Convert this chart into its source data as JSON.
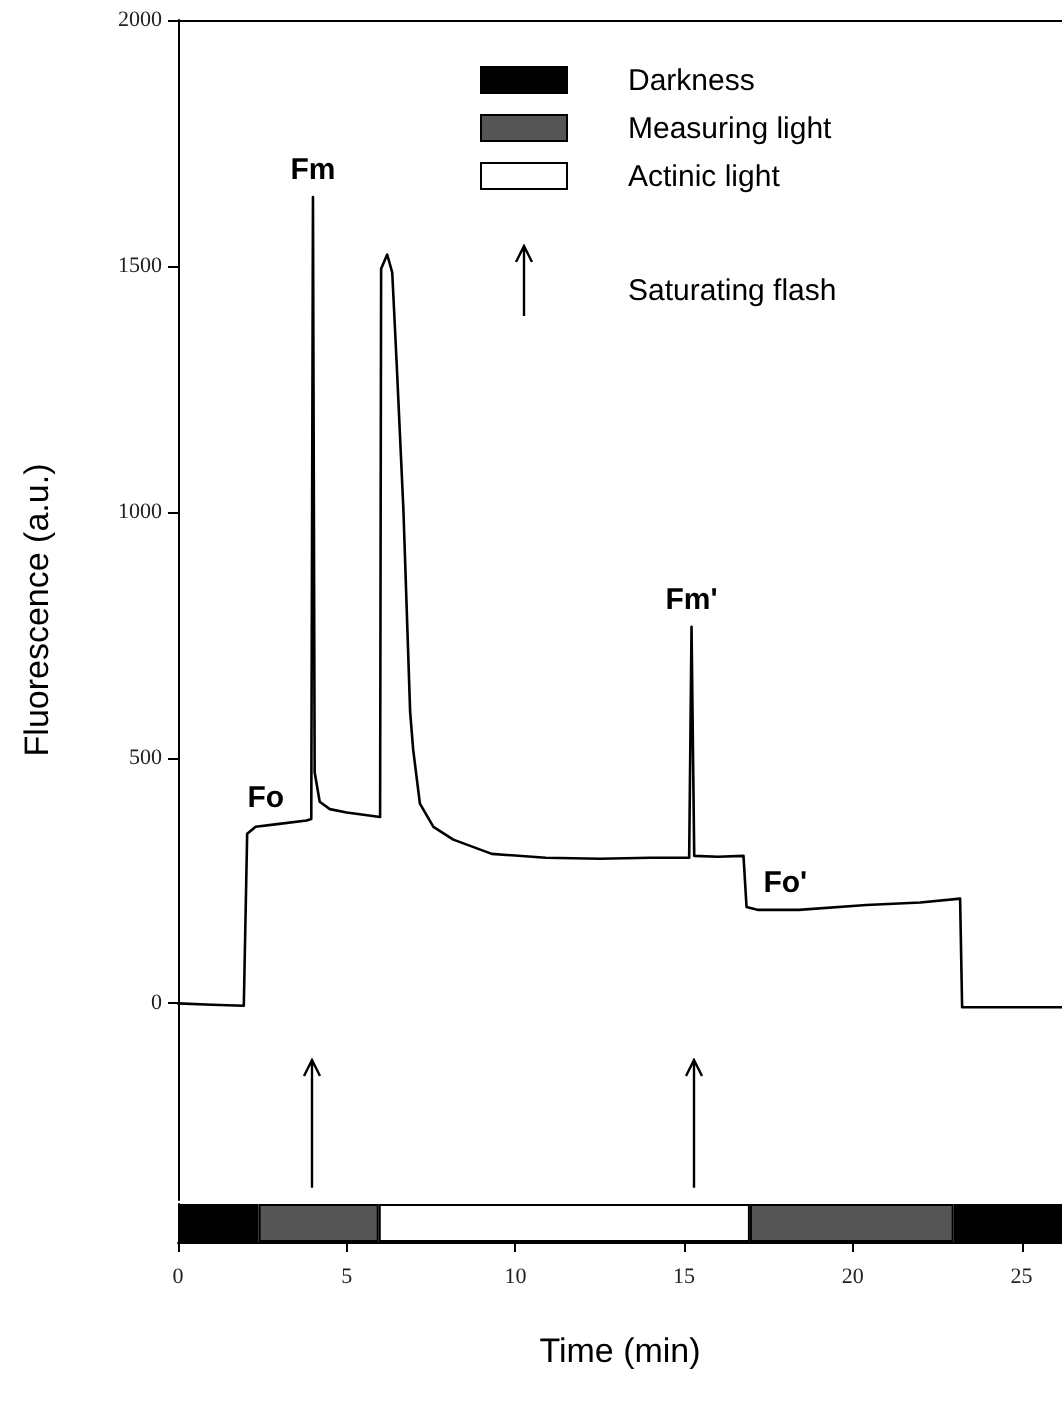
{
  "chart_data": [
    {
      "type": "line",
      "ylabel": "Fluorescence (a.u.)",
      "xlim": [
        0,
        26.2
      ],
      "ylim": [
        -400,
        2000
      ],
      "yticks": [
        0,
        500,
        1000,
        1500,
        2000
      ],
      "tick_labels": "y",
      "grid": false,
      "marker": "none",
      "line_style": "solid",
      "series": [
        {
          "color": "#000000",
          "x": [
            0,
            1,
            1.95,
            2.05,
            2.3,
            3.0,
            3.81,
            3.95,
            4.0,
            4.05,
            4.2,
            4.5,
            5.0,
            5.99,
            6.02,
            6.2,
            6.35,
            6.48,
            6.68,
            6.88,
            6.97,
            7.17,
            7.57,
            8.16,
            9.3,
            10.9,
            12.5,
            14.0,
            15.15,
            15.22,
            15.3,
            16.0,
            16.76,
            16.85,
            17.2,
            18.4,
            20.4,
            22.0,
            23.18,
            23.24,
            24.5,
            26.2
          ],
          "values": [
            0,
            -3,
            -5,
            345,
            359,
            365,
            372,
            375,
            1640,
            470,
            410,
            395,
            388,
            379,
            1494,
            1523,
            1486,
            1303,
            1005,
            593,
            516,
            406,
            359,
            333,
            304,
            296,
            294,
            296,
            296,
            766,
            300,
            298,
            300,
            196,
            190,
            190,
            200,
            205,
            213,
            -8,
            -8,
            -8
          ]
        }
      ],
      "ref_lines": [
        {
          "axis": "x",
          "value": 4.0,
          "label": "Saturating flash"
        },
        {
          "axis": "x",
          "value": 15.3,
          "label": null
        }
      ],
      "annotations": [
        {
          "text": "Fo",
          "x": 2.6,
          "y": 362
        },
        {
          "text": "Fm",
          "x": 4.0,
          "y": 1640
        },
        {
          "text": "Fm'",
          "x": 15.22,
          "y": 766
        },
        {
          "text": "Fo'",
          "x": 18.0,
          "y": 190
        }
      ]
    },
    {
      "type": "bar",
      "orientation": "horizontal",
      "stacked": true,
      "xlabel": "Time (min)",
      "categories": [
        null
      ],
      "xlim": [
        0,
        26.2
      ],
      "xticks": [
        0,
        5,
        10,
        15,
        20,
        25
      ],
      "tick_labels": "x",
      "legend": "top right",
      "series": [
        {
          "name": "Darkness",
          "color": "#000000",
          "values": [
            2.39
          ]
        },
        {
          "name": "Measuring light",
          "color": "#555555",
          "values": [
            3.56
          ]
        },
        {
          "name": "Actinic light",
          "color": "#ffffff",
          "values": [
            11.0
          ]
        },
        {
          "color": "#555555",
          "values": [
            6.04
          ]
        },
        {
          "color": "#000000",
          "values": [
            3.21
          ]
        }
      ]
    }
  ]
}
